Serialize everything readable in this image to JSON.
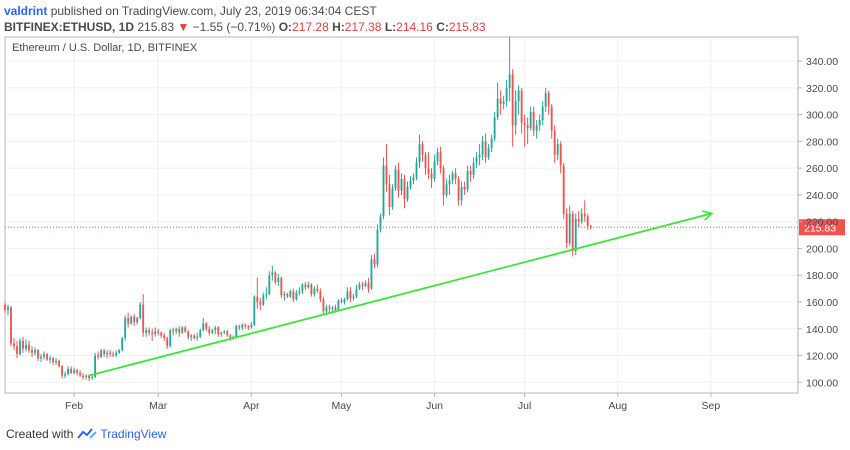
{
  "header": {
    "author": "valdrint",
    "published_text": "published on TradingView.com, July 23, 2019 06:34:04 CEST",
    "symbol": "BITFINEX:ETHUSD, 1D",
    "last_price": "215.83",
    "change_arrow": "▼",
    "change": "−1.55 (−0.71%)",
    "open_label": "O:",
    "open": "217.28",
    "high_label": "H:",
    "high": "217.38",
    "low_label": "L:",
    "low": "214.16",
    "close_label": "C:",
    "close": "215.83"
  },
  "footer": {
    "created_with": "Created with",
    "brand": "TradingView"
  },
  "colors": {
    "up": "#26a69a",
    "down": "#ef5350",
    "trendline": "#39e639",
    "price_line": "#e25d5d",
    "price_badge": "#ef5350",
    "grid": "#eef0f3",
    "axis_text": "#4a4a4a",
    "logo_blue": "#2962ff"
  },
  "chart_data": {
    "type": "candlestick",
    "title": "Ethereum / U.S. Dollar, 1D, BITFINEX",
    "current_price_label": "215.83",
    "ylim": [
      92,
      358
    ],
    "y_ticks": [
      "100.00",
      "120.00",
      "140.00",
      "160.00",
      "180.00",
      "200.00",
      "220.00",
      "240.00",
      "260.00",
      "280.00",
      "300.00",
      "320.00",
      "340.00"
    ],
    "x_ticks": [
      "Feb",
      "Mar",
      "Apr",
      "May",
      "Jun",
      "Jul",
      "Aug",
      "Sep"
    ],
    "x_range": [
      "2019-01-09",
      "2019-09-30"
    ],
    "grid": true,
    "trendline": {
      "start": [
        "2019-02-06",
        105
      ],
      "end": [
        "2019-09-01",
        226
      ]
    },
    "candles": [
      [
        "2019-01-09",
        158,
        160,
        152,
        154
      ],
      [
        "2019-01-10",
        154,
        158,
        150,
        156
      ],
      [
        "2019-01-11",
        156,
        157,
        127,
        129
      ],
      [
        "2019-01-12",
        129,
        133,
        124,
        127
      ],
      [
        "2019-01-13",
        127,
        131,
        118,
        121
      ],
      [
        "2019-01-14",
        121,
        133,
        120,
        131
      ],
      [
        "2019-01-15",
        131,
        134,
        122,
        125
      ],
      [
        "2019-01-16",
        125,
        132,
        123,
        128
      ],
      [
        "2019-01-17",
        128,
        131,
        122,
        124
      ],
      [
        "2019-01-18",
        124,
        127,
        119,
        122
      ],
      [
        "2019-01-19",
        122,
        126,
        120,
        124
      ],
      [
        "2019-01-20",
        124,
        125,
        116,
        118
      ],
      [
        "2019-01-21",
        118,
        121,
        115,
        119
      ],
      [
        "2019-01-22",
        119,
        123,
        117,
        121
      ],
      [
        "2019-01-23",
        121,
        122,
        116,
        117
      ],
      [
        "2019-01-24",
        117,
        120,
        114,
        118
      ],
      [
        "2019-01-25",
        118,
        119,
        113,
        115
      ],
      [
        "2019-01-26",
        115,
        118,
        113,
        116
      ],
      [
        "2019-01-27",
        116,
        117,
        111,
        112
      ],
      [
        "2019-01-28",
        112,
        113,
        103,
        105
      ],
      [
        "2019-01-29",
        105,
        108,
        103,
        106
      ],
      [
        "2019-01-30",
        106,
        112,
        105,
        110
      ],
      [
        "2019-01-31",
        110,
        112,
        106,
        107
      ],
      [
        "2019-02-01",
        107,
        111,
        106,
        109
      ],
      [
        "2019-02-02",
        109,
        110,
        105,
        107
      ],
      [
        "2019-02-03",
        107,
        109,
        104,
        105
      ],
      [
        "2019-02-04",
        105,
        107,
        102,
        104
      ],
      [
        "2019-02-05",
        104,
        106,
        102,
        105
      ],
      [
        "2019-02-06",
        105,
        106,
        101,
        103
      ],
      [
        "2019-02-07",
        103,
        106,
        102,
        104
      ],
      [
        "2019-02-08",
        104,
        122,
        103,
        120
      ],
      [
        "2019-02-09",
        120,
        123,
        117,
        119
      ],
      [
        "2019-02-10",
        119,
        125,
        118,
        124
      ],
      [
        "2019-02-11",
        124,
        125,
        119,
        121
      ],
      [
        "2019-02-12",
        121,
        124,
        118,
        122
      ],
      [
        "2019-02-13",
        122,
        124,
        119,
        121
      ],
      [
        "2019-02-14",
        121,
        123,
        119,
        120
      ],
      [
        "2019-02-15",
        120,
        124,
        119,
        122
      ],
      [
        "2019-02-16",
        122,
        125,
        121,
        124
      ],
      [
        "2019-02-17",
        124,
        134,
        123,
        133
      ],
      [
        "2019-02-18",
        133,
        150,
        131,
        148
      ],
      [
        "2019-02-19",
        148,
        152,
        141,
        144
      ],
      [
        "2019-02-20",
        144,
        150,
        143,
        149
      ],
      [
        "2019-02-21",
        149,
        151,
        142,
        145
      ],
      [
        "2019-02-22",
        145,
        149,
        143,
        148
      ],
      [
        "2019-02-23",
        148,
        160,
        147,
        158
      ],
      [
        "2019-02-24",
        158,
        166,
        134,
        137
      ],
      [
        "2019-02-25",
        137,
        141,
        134,
        139
      ],
      [
        "2019-02-26",
        139,
        141,
        135,
        137
      ],
      [
        "2019-02-27",
        137,
        140,
        131,
        136
      ],
      [
        "2019-02-28",
        136,
        141,
        134,
        138
      ],
      [
        "2019-03-01",
        138,
        140,
        135,
        137
      ],
      [
        "2019-03-02",
        137,
        138,
        133,
        135
      ],
      [
        "2019-03-03",
        135,
        137,
        131,
        133
      ],
      [
        "2019-03-04",
        133,
        134,
        125,
        127
      ],
      [
        "2019-03-05",
        127,
        140,
        126,
        139
      ],
      [
        "2019-03-06",
        139,
        141,
        135,
        138
      ],
      [
        "2019-03-07",
        138,
        141,
        136,
        140
      ],
      [
        "2019-03-08",
        140,
        142,
        134,
        137
      ],
      [
        "2019-03-09",
        137,
        142,
        136,
        141
      ],
      [
        "2019-03-10",
        141,
        142,
        137,
        138
      ],
      [
        "2019-03-11",
        138,
        139,
        132,
        134
      ],
      [
        "2019-03-12",
        134,
        136,
        131,
        135
      ],
      [
        "2019-03-13",
        135,
        136,
        132,
        133
      ],
      [
        "2019-03-14",
        133,
        137,
        131,
        134
      ],
      [
        "2019-03-15",
        134,
        140,
        133,
        139
      ],
      [
        "2019-03-16",
        139,
        148,
        138,
        144
      ],
      [
        "2019-03-17",
        144,
        145,
        138,
        140
      ],
      [
        "2019-03-18",
        140,
        142,
        135,
        137
      ],
      [
        "2019-03-19",
        137,
        140,
        136,
        139
      ],
      [
        "2019-03-20",
        139,
        142,
        136,
        141
      ],
      [
        "2019-03-21",
        141,
        142,
        134,
        136
      ],
      [
        "2019-03-22",
        136,
        138,
        134,
        137
      ],
      [
        "2019-03-23",
        137,
        139,
        136,
        138
      ],
      [
        "2019-03-24",
        138,
        139,
        134,
        135
      ],
      [
        "2019-03-25",
        135,
        136,
        131,
        133
      ],
      [
        "2019-03-26",
        133,
        135,
        132,
        134
      ],
      [
        "2019-03-27",
        134,
        143,
        133,
        142
      ],
      [
        "2019-03-28",
        142,
        143,
        139,
        141
      ],
      [
        "2019-03-29",
        141,
        144,
        139,
        143
      ],
      [
        "2019-03-30",
        143,
        144,
        140,
        142
      ],
      [
        "2019-03-31",
        142,
        143,
        139,
        141
      ],
      [
        "2019-04-01",
        141,
        145,
        140,
        143
      ],
      [
        "2019-04-02",
        143,
        165,
        142,
        164
      ],
      [
        "2019-04-03",
        164,
        178,
        155,
        160
      ],
      [
        "2019-04-04",
        160,
        163,
        154,
        158
      ],
      [
        "2019-04-05",
        158,
        167,
        157,
        165
      ],
      [
        "2019-04-06",
        165,
        171,
        162,
        166
      ],
      [
        "2019-04-07",
        166,
        183,
        165,
        180
      ],
      [
        "2019-04-08",
        180,
        187,
        176,
        182
      ],
      [
        "2019-04-09",
        182,
        183,
        173,
        175
      ],
      [
        "2019-04-10",
        175,
        181,
        172,
        178
      ],
      [
        "2019-04-11",
        178,
        179,
        163,
        165
      ],
      [
        "2019-04-12",
        165,
        168,
        161,
        166
      ],
      [
        "2019-04-13",
        166,
        167,
        163,
        164
      ],
      [
        "2019-04-14",
        164,
        169,
        163,
        168
      ],
      [
        "2019-04-15",
        168,
        170,
        160,
        162
      ],
      [
        "2019-04-16",
        162,
        169,
        161,
        167
      ],
      [
        "2019-04-17",
        167,
        171,
        165,
        168
      ],
      [
        "2019-04-18",
        168,
        174,
        166,
        173
      ],
      [
        "2019-04-19",
        173,
        175,
        169,
        171
      ],
      [
        "2019-04-20",
        171,
        175,
        170,
        173
      ],
      [
        "2019-04-21",
        173,
        174,
        164,
        166
      ],
      [
        "2019-04-22",
        166,
        172,
        164,
        170
      ],
      [
        "2019-04-23",
        170,
        173,
        167,
        168
      ],
      [
        "2019-04-24",
        168,
        170,
        160,
        162
      ],
      [
        "2019-04-25",
        162,
        164,
        151,
        153
      ],
      [
        "2019-04-26",
        153,
        158,
        150,
        156
      ],
      [
        "2019-04-27",
        156,
        158,
        152,
        155
      ],
      [
        "2019-04-28",
        155,
        157,
        153,
        156
      ],
      [
        "2019-04-29",
        156,
        158,
        152,
        154
      ],
      [
        "2019-04-30",
        154,
        162,
        153,
        161
      ],
      [
        "2019-05-01",
        161,
        163,
        159,
        160
      ],
      [
        "2019-05-02",
        160,
        163,
        158,
        162
      ],
      [
        "2019-05-03",
        162,
        171,
        161,
        168
      ],
      [
        "2019-05-04",
        168,
        171,
        160,
        163
      ],
      [
        "2019-05-05",
        163,
        166,
        161,
        164
      ],
      [
        "2019-05-06",
        164,
        173,
        163,
        170
      ],
      [
        "2019-05-07",
        170,
        175,
        169,
        173
      ],
      [
        "2019-05-08",
        173,
        175,
        169,
        172
      ],
      [
        "2019-05-09",
        172,
        176,
        171,
        174
      ],
      [
        "2019-05-10",
        174,
        178,
        167,
        170
      ],
      [
        "2019-05-11",
        170,
        195,
        169,
        192
      ],
      [
        "2019-05-12",
        192,
        196,
        185,
        188
      ],
      [
        "2019-05-13",
        188,
        218,
        186,
        214
      ],
      [
        "2019-05-14",
        214,
        226,
        212,
        224
      ],
      [
        "2019-05-15",
        224,
        268,
        222,
        262
      ],
      [
        "2019-05-16",
        262,
        278,
        242,
        248
      ],
      [
        "2019-05-17",
        248,
        255,
        225,
        231
      ],
      [
        "2019-05-18",
        231,
        248,
        229,
        245
      ],
      [
        "2019-05-19",
        245,
        262,
        243,
        259
      ],
      [
        "2019-05-20",
        259,
        264,
        238,
        243
      ],
      [
        "2019-05-21",
        243,
        256,
        240,
        252
      ],
      [
        "2019-05-22",
        252,
        255,
        230,
        237
      ],
      [
        "2019-05-23",
        237,
        250,
        235,
        246
      ],
      [
        "2019-05-24",
        246,
        254,
        244,
        251
      ],
      [
        "2019-05-25",
        251,
        256,
        248,
        253
      ],
      [
        "2019-05-26",
        253,
        268,
        251,
        264
      ],
      [
        "2019-05-27",
        264,
        285,
        260,
        278
      ],
      [
        "2019-05-28",
        278,
        280,
        265,
        270
      ],
      [
        "2019-05-29",
        270,
        272,
        255,
        260
      ],
      [
        "2019-05-30",
        260,
        272,
        252,
        256
      ],
      [
        "2019-05-31",
        256,
        260,
        245,
        252
      ],
      [
        "2019-06-01",
        252,
        270,
        250,
        265
      ],
      [
        "2019-06-02",
        265,
        275,
        262,
        272
      ],
      [
        "2019-06-03",
        272,
        276,
        256,
        260
      ],
      [
        "2019-06-04",
        260,
        262,
        232,
        240
      ],
      [
        "2019-06-05",
        240,
        252,
        238,
        248
      ],
      [
        "2019-06-06",
        248,
        255,
        240,
        251
      ],
      [
        "2019-06-07",
        251,
        258,
        248,
        256
      ],
      [
        "2019-06-08",
        256,
        260,
        248,
        252
      ],
      [
        "2019-06-09",
        252,
        254,
        232,
        236
      ],
      [
        "2019-06-10",
        236,
        250,
        232,
        246
      ],
      [
        "2019-06-11",
        246,
        250,
        240,
        244
      ],
      [
        "2019-06-12",
        244,
        262,
        242,
        258
      ],
      [
        "2019-06-13",
        258,
        262,
        250,
        255
      ],
      [
        "2019-06-14",
        255,
        268,
        252,
        264
      ],
      [
        "2019-06-15",
        264,
        272,
        260,
        268
      ],
      [
        "2019-06-16",
        268,
        278,
        262,
        270
      ],
      [
        "2019-06-17",
        270,
        284,
        266,
        280
      ],
      [
        "2019-06-18",
        280,
        286,
        264,
        268
      ],
      [
        "2019-06-19",
        268,
        278,
        266,
        275
      ],
      [
        "2019-06-20",
        275,
        285,
        272,
        282
      ],
      [
        "2019-06-21",
        282,
        302,
        280,
        298
      ],
      [
        "2019-06-22",
        298,
        324,
        296,
        312
      ],
      [
        "2019-06-23",
        312,
        318,
        300,
        308
      ],
      [
        "2019-06-24",
        308,
        314,
        304,
        310
      ],
      [
        "2019-06-25",
        310,
        326,
        306,
        320
      ],
      [
        "2019-06-26",
        320,
        358,
        310,
        330
      ],
      [
        "2019-06-27",
        330,
        334,
        276,
        292
      ],
      [
        "2019-06-28",
        292,
        318,
        285,
        310
      ],
      [
        "2019-06-29",
        310,
        322,
        300,
        318
      ],
      [
        "2019-06-30",
        318,
        320,
        286,
        294
      ],
      [
        "2019-07-01",
        294,
        300,
        276,
        292
      ],
      [
        "2019-07-02",
        292,
        298,
        278,
        290
      ],
      [
        "2019-07-03",
        290,
        306,
        288,
        302
      ],
      [
        "2019-07-04",
        302,
        306,
        284,
        288
      ],
      [
        "2019-07-05",
        288,
        296,
        282,
        292
      ],
      [
        "2019-07-06",
        292,
        300,
        288,
        296
      ],
      [
        "2019-07-07",
        296,
        310,
        292,
        306
      ],
      [
        "2019-07-08",
        306,
        320,
        302,
        316
      ],
      [
        "2019-07-09",
        316,
        318,
        300,
        306
      ],
      [
        "2019-07-10",
        306,
        308,
        282,
        288
      ],
      [
        "2019-07-11",
        288,
        292,
        264,
        270
      ],
      [
        "2019-07-12",
        270,
        282,
        266,
        278
      ],
      [
        "2019-07-13",
        278,
        280,
        256,
        262
      ],
      [
        "2019-07-14",
        262,
        264,
        222,
        226
      ],
      [
        "2019-07-15",
        226,
        230,
        200,
        204
      ],
      [
        "2019-07-16",
        204,
        232,
        202,
        226
      ],
      [
        "2019-07-17",
        226,
        228,
        194,
        198
      ],
      [
        "2019-07-18",
        198,
        226,
        195,
        222
      ],
      [
        "2019-07-19",
        222,
        228,
        216,
        220
      ],
      [
        "2019-07-20",
        220,
        230,
        218,
        226
      ],
      [
        "2019-07-21",
        226,
        236,
        220,
        224
      ],
      [
        "2019-07-22",
        224,
        226,
        214,
        217
      ],
      [
        "2019-07-23",
        217.28,
        217.38,
        214.16,
        215.83
      ]
    ]
  }
}
